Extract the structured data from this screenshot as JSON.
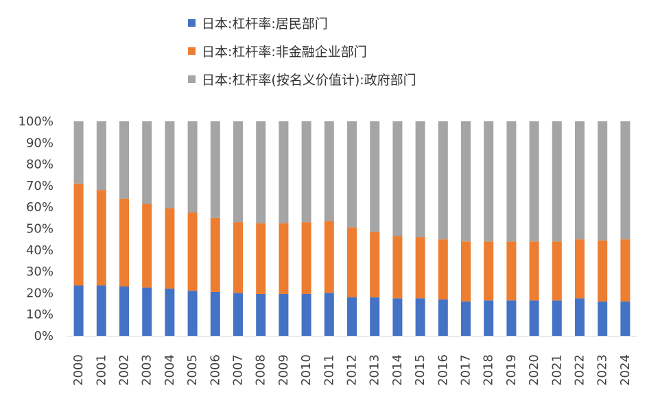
{
  "colors": {
    "household": "#4472C4",
    "nonfinancial": "#ED7D31",
    "government": "#A5A5A5",
    "axis": "#D9D9D9",
    "text": "#404040"
  },
  "chart_data": {
    "type": "bar",
    "stacking": "percent",
    "categories": [
      "2000",
      "2001",
      "2002",
      "2003",
      "2004",
      "2005",
      "2006",
      "2007",
      "2008",
      "2009",
      "2010",
      "2011",
      "2012",
      "2013",
      "2014",
      "2015",
      "2016",
      "2017",
      "2018",
      "2019",
      "2020",
      "2021",
      "2022",
      "2023",
      "2024"
    ],
    "series": [
      {
        "name": "日本:杠杆率:居民部门",
        "color_key": "household",
        "values": [
          23.5,
          23.5,
          23,
          22.5,
          22,
          21,
          20.5,
          20,
          19.5,
          19.5,
          19.5,
          20,
          18,
          18,
          17.5,
          17.5,
          17,
          16,
          16.5,
          16.5,
          16.5,
          16.5,
          17.5,
          16,
          16
        ]
      },
      {
        "name": "日本:杠杆率:非金融企业部门",
        "color_key": "nonfinancial",
        "values": [
          47.5,
          44.5,
          41,
          39,
          37.5,
          36.5,
          34.5,
          33,
          33,
          33,
          33.5,
          33.5,
          32.5,
          30.5,
          29,
          28.5,
          28,
          28,
          27.5,
          27.5,
          27.5,
          27.5,
          27.5,
          28.5,
          29
        ]
      },
      {
        "name": "日本:杠杆率(按名义价值计):政府部门",
        "color_key": "government",
        "values": [
          29,
          32,
          36,
          38.5,
          40.5,
          42.5,
          45,
          47,
          47.5,
          47.5,
          47,
          46.5,
          49.5,
          51.5,
          53.5,
          54,
          55,
          56,
          56,
          56,
          56,
          56,
          55,
          55.5,
          55
        ]
      }
    ],
    "y_ticks": [
      "0%",
      "10%",
      "20%",
      "30%",
      "40%",
      "50%",
      "60%",
      "70%",
      "80%",
      "90%",
      "100%"
    ],
    "ylim": [
      0,
      100
    ],
    "legend_position": "top",
    "grid": false
  }
}
